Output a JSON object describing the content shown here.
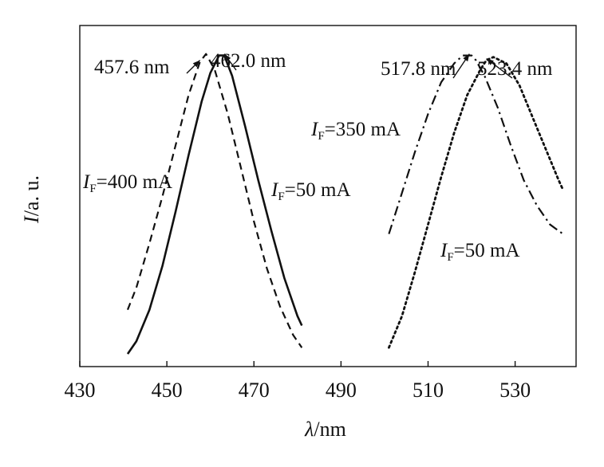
{
  "chart_data": {
    "type": "line",
    "title": "",
    "xlabel": {
      "symbol": "λ",
      "unit": "/nm"
    },
    "ylabel": {
      "symbol": "I",
      "unit": "/a. u."
    },
    "xlim": [
      430,
      544
    ],
    "ylim": [
      0,
      1.08
    ],
    "xticks": [
      430,
      450,
      470,
      490,
      510,
      530
    ],
    "xtick_labels": [
      "430",
      "450",
      "470",
      "490",
      "510",
      "530"
    ],
    "yticks": [],
    "grid": false,
    "series": [
      {
        "id": "blue_400",
        "style": "dashed",
        "x": [
          441,
          443,
          446,
          449,
          452,
          455,
          457.6,
          459,
          461,
          464,
          467,
          470,
          473,
          476,
          479,
          481
        ],
        "y": [
          0.18,
          0.25,
          0.39,
          0.54,
          0.7,
          0.86,
          0.965,
          0.99,
          0.94,
          0.8,
          0.63,
          0.46,
          0.31,
          0.19,
          0.1,
          0.06
        ]
      },
      {
        "id": "blue_50",
        "style": "solid",
        "x": [
          441,
          443,
          446,
          449,
          452,
          455,
          458,
          460,
          462,
          463.2,
          465,
          468,
          471,
          474,
          477,
          480,
          481
        ],
        "y": [
          0.04,
          0.08,
          0.18,
          0.32,
          0.49,
          0.67,
          0.84,
          0.93,
          0.985,
          0.985,
          0.92,
          0.76,
          0.59,
          0.43,
          0.28,
          0.16,
          0.13
        ]
      },
      {
        "id": "green_350",
        "style": "dashdot",
        "x": [
          501,
          504,
          507,
          510,
          513,
          516,
          518,
          520,
          521,
          523,
          526,
          529,
          532,
          535,
          538,
          541
        ],
        "y": [
          0.42,
          0.55,
          0.68,
          0.8,
          0.9,
          0.96,
          0.985,
          0.985,
          0.97,
          0.92,
          0.82,
          0.7,
          0.59,
          0.51,
          0.45,
          0.42
        ]
      },
      {
        "id": "green_50",
        "style": "dotted",
        "x": [
          501,
          504,
          507,
          510,
          513,
          516,
          519,
          522,
          523.4,
          525,
          528,
          531,
          534,
          537,
          540,
          541
        ],
        "y": [
          0.06,
          0.16,
          0.3,
          0.45,
          0.6,
          0.74,
          0.86,
          0.94,
          0.97,
          0.98,
          0.96,
          0.89,
          0.79,
          0.69,
          0.59,
          0.56
        ]
      }
    ],
    "annotations": [
      {
        "text": "457.6 nm",
        "x": 457.6,
        "y": 0.965
      },
      {
        "text": "462.0 nm",
        "x": 463.2,
        "y": 0.985
      },
      {
        "text": "517.8 nm",
        "x": 519.5,
        "y": 0.985
      },
      {
        "text": "523.4 nm",
        "x": 523.4,
        "y": 0.97
      }
    ],
    "series_labels": [
      {
        "symbol": "I",
        "sub": "F",
        "text": "=400 mA"
      },
      {
        "symbol": "I",
        "sub": "F",
        "text": "=50 mA"
      },
      {
        "symbol": "I",
        "sub": "F",
        "text": "=350 mA"
      },
      {
        "symbol": "I",
        "sub": "F",
        "text": "=50 mA"
      }
    ]
  }
}
